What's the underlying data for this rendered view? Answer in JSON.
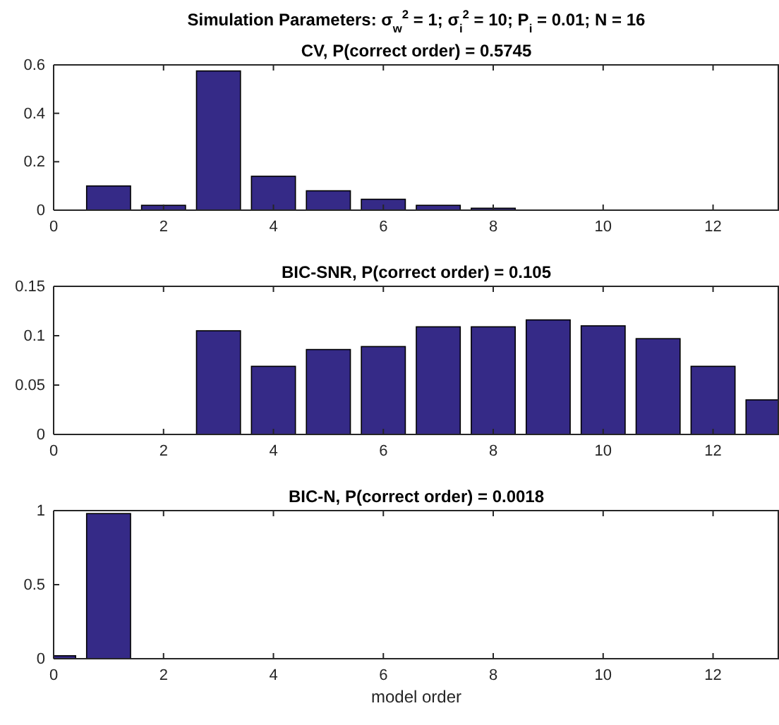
{
  "chart_data": [
    {
      "type": "bar",
      "title": "Simulation Parameters: σ$_{w}$$^{2}$ = 1; σ$_{i}$$^{2}$ = 10; P$_{i}$ = 0.01; N = 16",
      "subtitle": "CV, P(correct order) = 0.5745",
      "x": [
        0,
        1,
        2,
        3,
        4,
        5,
        6,
        7,
        8,
        9,
        10,
        11,
        12,
        13
      ],
      "series": [
        {
          "color": "#352a87",
          "values": [
            0,
            0.1,
            0.02,
            0.575,
            0.14,
            0.08,
            0.045,
            0.02,
            0.008,
            0,
            0,
            0,
            0,
            0
          ]
        }
      ],
      "xlim": [
        0,
        13.2
      ],
      "xticks": [
        0,
        2,
        4,
        6,
        8,
        10,
        12
      ],
      "ylim": [
        0,
        0.6
      ],
      "yticks": [
        0,
        0.2,
        0.4,
        0.6
      ],
      "grid": false
    },
    {
      "type": "bar",
      "title": "BIC-SNR, P(correct order) = 0.105",
      "x": [
        0,
        1,
        2,
        3,
        4,
        5,
        6,
        7,
        8,
        9,
        10,
        11,
        12,
        13
      ],
      "series": [
        {
          "color": "#352a87",
          "values": [
            0,
            0,
            0,
            0.105,
            0.069,
            0.086,
            0.089,
            0.109,
            0.109,
            0.116,
            0.11,
            0.097,
            0.069,
            0.035
          ]
        }
      ],
      "xlim": [
        0,
        13.2
      ],
      "xticks": [
        0,
        2,
        4,
        6,
        8,
        10,
        12
      ],
      "ylim": [
        0,
        0.15
      ],
      "yticks": [
        0,
        0.05,
        0.1,
        0.15
      ],
      "grid": false
    },
    {
      "type": "bar",
      "title": "BIC-N, P(correct order) = 0.0018",
      "xlabel": "model order",
      "x": [
        0,
        1,
        2,
        3,
        4,
        5,
        6,
        7,
        8,
        9,
        10,
        11,
        12,
        13
      ],
      "series": [
        {
          "color": "#352a87",
          "values": [
            0.02,
            0.98,
            0,
            0,
            0,
            0,
            0,
            0,
            0,
            0,
            0,
            0,
            0,
            0
          ]
        }
      ],
      "xlim": [
        0,
        13.2
      ],
      "xticks": [
        0,
        2,
        4,
        6,
        8,
        10,
        12
      ],
      "ylim": [
        0,
        1
      ],
      "yticks": [
        0,
        0.5,
        1
      ],
      "grid": false
    }
  ]
}
